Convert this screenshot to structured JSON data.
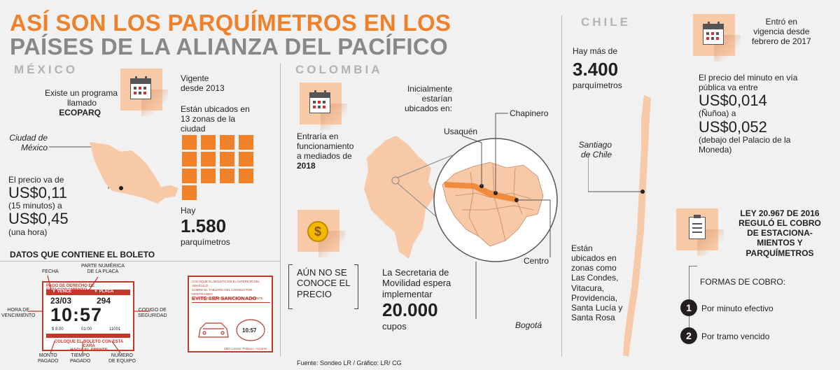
{
  "header": {
    "title_line1": "ASÍ SON LOS PARQUÍMETROS EN LOS",
    "title_line2": "PAÍSES DE LA ALIANZA DEL PACÍFICO"
  },
  "colors": {
    "accent": "#f0812b",
    "light": "#f7c9a7",
    "ticket_red": "#c0392b"
  },
  "mexico": {
    "country": "MÉXICO",
    "program_line1": "Existe un programa",
    "program_line2": "llamado",
    "program_name": "ECOPARQ",
    "in_force_line1": "Vigente",
    "in_force_line2": "desde 2013",
    "zones_line1": "Están ubicados en",
    "zones_line2": "13 zonas de la",
    "zones_line3": "ciudad",
    "city_line1": "Ciudad de",
    "city_line2": "México",
    "price_intro": "El precio va de",
    "price1": "US$0,11",
    "price1_note": "(15 minutos) a",
    "price2": "US$0,45",
    "price2_note": "(una hora)",
    "hay": "Hay",
    "count": "1.580",
    "count_unit": "parquímetros"
  },
  "ticket": {
    "heading": "DATOS QUE CONTIENE EL BOLETO",
    "labels": {
      "fecha": "FECHA",
      "placa_line1": "PARTE NUMÉRICA",
      "placa_line2": "DE LA PLACA",
      "hora_line1": "HORA DE",
      "hora_line2": "VENCIMIENTO",
      "codigo_line1": "CODIGO DE",
      "codigo_line2": "SEGURIDAD",
      "monto_line1": "MONTO",
      "monto_line2": "PAGADO",
      "tiempo_line1": "TIEMPO",
      "tiempo_line2": "PAGADO",
      "equipo_line1": "NÚMERO",
      "equipo_line2": "DE EQUIPO"
    },
    "front": {
      "header": "PAGO DE DERECHO DE ESTACIONAMIENTO",
      "vence": "▼ VENCE",
      "placa": "▼ PLACA",
      "date": "23/03",
      "plate": "294",
      "time": "10:57",
      "amount": "$ 8.00",
      "duration": "01:00",
      "device": "11001",
      "footer_line1": "COLOQUE EL BOLETO CON ESTA CARA",
      "footer_line2": "HACIA EL FRENTE"
    },
    "back": {
      "text_line1": "COLOQUE EL BOLETO EN EL INTERIOR DEL VEHÍCULO",
      "text_line2": "SOBRE EL TABLERO DEL CONDUCTOR, MOSTRANDO",
      "text_line3": "LA HORA DE VENCIMIENTO HACIA EL FRENTE",
      "warning": "EVITE SER SANCIONADO",
      "time": "10:57",
      "bottom": "ZMA Lomas, Polanco, Anzures"
    }
  },
  "colombia": {
    "country": "COLOMBIA",
    "start_line1": "Entraría en",
    "start_line2": "funcionamiento",
    "start_line3": "a mediados de",
    "start_year": "2018",
    "initial_line1": "Inicialmente",
    "initial_line2": "estarían",
    "initial_line3": "ubicados en:",
    "places": {
      "usaquen": "Usaquén",
      "chapinero": "Chapinero",
      "centro": "Centro",
      "bogota": "Bogotá"
    },
    "price_line1": "AÚN NO SE",
    "price_line2": "CONOCE EL",
    "price_line3": "PRECIO",
    "plan_line1": "La Secretaria de",
    "plan_line2": "Movilidad espera",
    "plan_line3": "implementar",
    "plan_count": "20.000",
    "plan_unit": "cupos",
    "source": "Fuente: Sondeo LR / Gráfico: LR/ CG"
  },
  "chile": {
    "country": "CHILE",
    "hay": "Hay más de",
    "count": "3.400",
    "count_unit": "parquímetros",
    "in_force_line1": "Entró en",
    "in_force_line2": "vigencia desde",
    "in_force_line3": "febrero de 2017",
    "price_line1": "El precio del minuto en vía",
    "price_line2": "pública va entre",
    "price1": "US$0,014",
    "price1_note": "(Ñuñoa) a",
    "price2": "US$0,052",
    "price2_note_line1": "(debajo del Palacio de la",
    "price2_note_line2": "Moneda)",
    "city_line1": "Santiago",
    "city_line2": "de Chile",
    "zones_line1": "Están",
    "zones_line2": "ubicados en",
    "zones_line3": "zonas como",
    "zones_line4": "Las Condes,",
    "zones_line5": "Vitacura,",
    "zones_line6": "Providencia,",
    "zones_line7": "Santa Lucía y",
    "zones_line8": "Santa Rosa",
    "law_line1": "LEY 20.967 DE 2016",
    "law_line2": "REGULÓ EL COBRO",
    "law_line3": "DE ESTACIONA-",
    "law_line4": "MIENTOS Y",
    "law_line5": "PARQUÍMETROS",
    "payment_title": "FORMAS DE COBRO:",
    "payment": [
      {
        "n": "1",
        "label": "Por minuto efectivo"
      },
      {
        "n": "2",
        "label": "Por tramo vencido"
      }
    ]
  }
}
